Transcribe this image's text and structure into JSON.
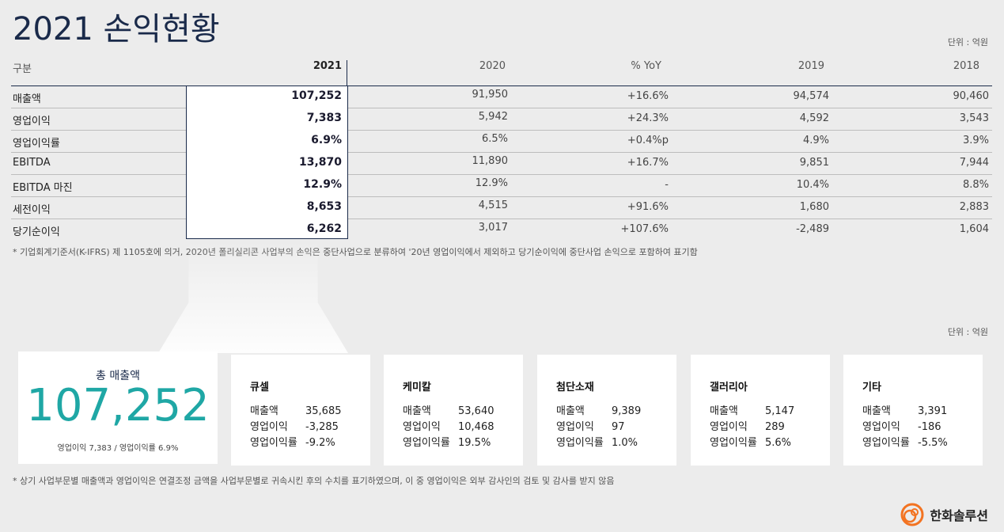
{
  "title": "2021 손익현황",
  "unit_label": "단위 : 억원",
  "table": {
    "headers": [
      "구분",
      "2021",
      "2020",
      "% YoY",
      "2019",
      "2018"
    ],
    "rows": [
      {
        "label": "매출액",
        "y2021": "107,252",
        "y2020": "91,950",
        "yoy": "+16.6%",
        "y2019": "94,574",
        "y2018": "90,460"
      },
      {
        "label": "영업이익",
        "y2021": "7,383",
        "y2020": "5,942",
        "yoy": "+24.3%",
        "y2019": "4,592",
        "y2018": "3,543"
      },
      {
        "label": "영업이익률",
        "y2021": "6.9%",
        "y2020": "6.5%",
        "yoy": "+0.4%p",
        "y2019": "4.9%",
        "y2018": "3.9%"
      },
      {
        "label": "EBITDA",
        "y2021": "13,870",
        "y2020": "11,890",
        "yoy": "+16.7%",
        "y2019": "9,851",
        "y2018": "7,944"
      },
      {
        "label": "EBITDA 마진",
        "y2021": "12.9%",
        "y2020": "12.9%",
        "yoy": "-",
        "y2019": "10.4%",
        "y2018": "8.8%"
      },
      {
        "label": "세전이익",
        "y2021": "8,653",
        "y2020": "4,515",
        "yoy": "+91.6%",
        "y2019": "1,680",
        "y2018": "2,883"
      },
      {
        "label": "당기순이익",
        "y2021": "6,262",
        "y2020": "3,017",
        "yoy": "+107.6%",
        "y2019": "-2,489",
        "y2018": "1,604"
      }
    ]
  },
  "note1": "* 기업회계기준서(K-IFRS) 제 1105호에 의거, 2020년 폴리실리콘 사업부의 손익은 중단사업으로 분류하여 '20년 영업이익에서 제외하고 당기순이익에 중단사업 손익으로 포함하여 표기함",
  "total": {
    "label": "총 매출액",
    "value": "107,252",
    "sub": "영업이익 7,383 / 영업이익률 6.9%"
  },
  "segments": [
    {
      "title": "큐셀",
      "k1": "매출액",
      "v1": "35,685",
      "k2": "영업이익",
      "v2": "-3,285",
      "k3": "영업이익률",
      "v3": "-9.2%"
    },
    {
      "title": "케미칼",
      "k1": "매출액",
      "v1": "53,640",
      "k2": "영업이익",
      "v2": "10,468",
      "k3": "영업이익률",
      "v3": "19.5%"
    },
    {
      "title": "첨단소재",
      "k1": "매출액",
      "v1": "9,389",
      "k2": "영업이익",
      "v2": "97",
      "k3": "영업이익률",
      "v3": "1.0%"
    },
    {
      "title": "갤러리아",
      "k1": "매출액",
      "v1": "5,147",
      "k2": "영업이익",
      "v2": "289",
      "k3": "영업이익률",
      "v3": "5.6%"
    },
    {
      "title": "기타",
      "k1": "매출액",
      "v1": "3,391",
      "k2": "영업이익",
      "v2": "-186",
      "k3": "영업이익률",
      "v3": "-5.5%"
    }
  ],
  "note2": "* 상기 사업부문별 매출액과 영업이익은 연결조정 금액을 사업부문별로 귀속시킨 후의 수치를 표기하였으며, 이 중 영업이익은 외부 감사인의 검토 및 감사를 받지 않음",
  "logo": {
    "text": "한화솔루션",
    "icon": "hanwha-logo-icon",
    "color": "#f37321"
  }
}
